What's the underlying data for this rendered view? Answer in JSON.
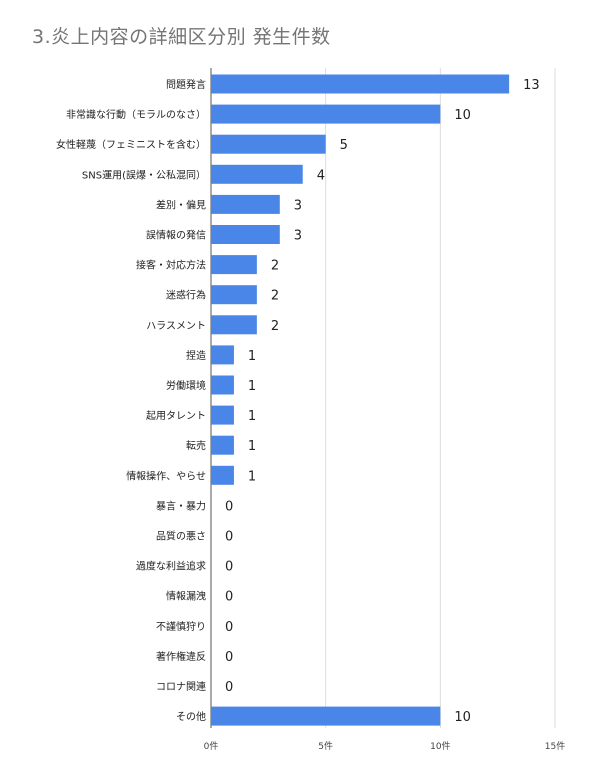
{
  "chart_data": {
    "type": "bar",
    "orientation": "horizontal",
    "title": "3.炎上内容の詳細区分別 発生件数",
    "categories": [
      "問題発言",
      "非常識な行動（モラルのなさ）",
      "女性軽蔑（フェミニストを含む）",
      "SNS運用(誤爆・公私混同）",
      "差別・偏見",
      "誤情報の発信",
      "接客・対応方法",
      "迷惑行為",
      "ハラスメント",
      "捏造",
      "労働環境",
      "起用タレント",
      "転売",
      "情報操作、やらせ",
      "暴言・暴力",
      "品質の悪さ",
      "過度な利益追求",
      "情報漏洩",
      "不謹慎狩り",
      "著作権違反",
      "コロナ関連",
      "その他"
    ],
    "values": [
      13,
      10,
      5,
      4,
      3,
      3,
      2,
      2,
      2,
      1,
      1,
      1,
      1,
      1,
      0,
      0,
      0,
      0,
      0,
      0,
      0,
      10
    ],
    "xlim": [
      0,
      15
    ],
    "xticks": [
      0,
      5,
      10,
      15
    ],
    "xtick_labels": [
      "0件",
      "5件",
      "10件",
      "15件"
    ],
    "xlabel": "",
    "ylabel": "",
    "grid": "vertical",
    "legend": "none",
    "bar_color": "#4a86e8",
    "data_labels": true
  }
}
